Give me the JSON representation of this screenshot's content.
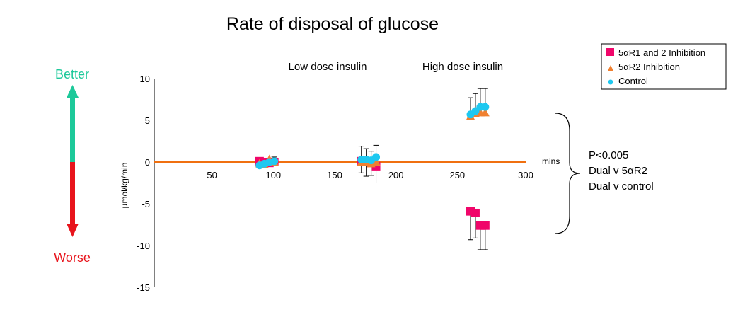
{
  "chart_data": {
    "type": "scatter",
    "title": "Rate of disposal of glucose",
    "ylabel": "µmol/kg/min",
    "xlabel": "mins",
    "xlim": [
      0,
      300
    ],
    "ylim": [
      -15,
      10
    ],
    "xticks": [
      50,
      100,
      150,
      200,
      250,
      300
    ],
    "yticks": [
      10,
      5,
      0,
      -5,
      -10,
      -15
    ],
    "legend_position": "top-right",
    "annotations": {
      "low_dose": "Low dose insulin",
      "high_dose": "High dose insulin",
      "better": "Better",
      "worse": "Worse",
      "stats": [
        "P<0.005",
        "Dual v 5αR2",
        "Dual v control"
      ]
    },
    "colors": {
      "dual": "#f0066a",
      "r2": "#f08030",
      "control": "#1ec8f0",
      "better": "#1dc99a",
      "worse": "#e8141c",
      "baseline": "#f07010"
    },
    "series": [
      {
        "name": "5αR1 and 2 Inhibition",
        "marker": "square",
        "x": [
          83,
          87,
          91,
          95,
          166,
          170,
          174,
          178,
          255,
          259,
          263,
          267
        ],
        "y": [
          0.1,
          0,
          -0.1,
          0,
          0.1,
          0,
          -0.1,
          -0.5,
          -5.9,
          -6.1,
          -7.6,
          -7.6
        ],
        "err_low": [
          null,
          null,
          null,
          null,
          -1.3,
          -1.7,
          -1.6,
          -2.5,
          -9.3,
          -9.1,
          -10.5,
          -10.5
        ]
      },
      {
        "name": "5αR2 Inhibition",
        "marker": "triangle",
        "x": [
          83,
          87,
          91,
          95,
          166,
          170,
          174,
          178,
          255,
          259,
          263,
          267
        ],
        "y": [
          -0.2,
          -0.3,
          0.3,
          0,
          0,
          0,
          -0.2,
          0,
          5.5,
          5.8,
          5.9,
          5.9
        ]
      },
      {
        "name": "Control",
        "marker": "circle",
        "x": [
          83,
          87,
          91,
          95,
          166,
          170,
          174,
          178,
          255,
          259,
          263,
          267
        ],
        "y": [
          -0.4,
          -0.2,
          0,
          0.1,
          0.3,
          0.3,
          0.2,
          0.6,
          5.7,
          6.1,
          6.6,
          6.6
        ],
        "err_high": [
          null,
          null,
          null,
          0.6,
          1.9,
          1.6,
          1.3,
          2.0,
          7.7,
          8.2,
          8.8,
          8.8
        ]
      }
    ]
  }
}
